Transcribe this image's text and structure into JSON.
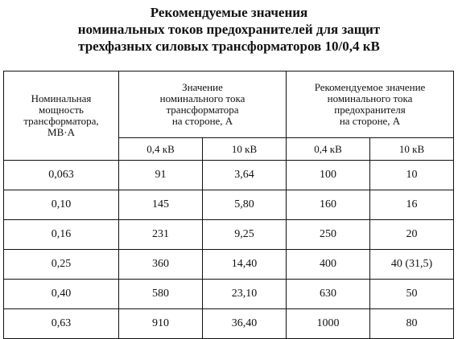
{
  "title": {
    "line1": "Рекомендуемые значения",
    "line2": "номинальных токов предохранителей для защит",
    "line3": "трехфазных силовых трансформаторов 10/0,4 кВ"
  },
  "table": {
    "col_power": [
      "Номинальная",
      "мощность",
      "трансформатора,",
      "МВ·А"
    ],
    "col_transformer_current": [
      "Значение",
      "номинального тока",
      "трансформатора",
      "на стороне, А"
    ],
    "col_fuse_current": [
      "Рекомендуемое значение",
      "номинального тока",
      "предохранителя",
      "на стороне, А"
    ],
    "sub_headers": [
      "0,4 кВ",
      "10 кВ",
      "0,4 кВ",
      "10 кВ"
    ],
    "rows": [
      [
        "0,063",
        "91",
        "3,64",
        "100",
        "10"
      ],
      [
        "0,10",
        "145",
        "5,80",
        "160",
        "16"
      ],
      [
        "0,16",
        "231",
        "9,25",
        "250",
        "20"
      ],
      [
        "0,25",
        "360",
        "14,40",
        "400",
        "40 (31,5)"
      ],
      [
        "0,40",
        "580",
        "23,10",
        "630",
        "50"
      ],
      [
        "0,63",
        "910",
        "36,40",
        "1000",
        "80"
      ]
    ]
  }
}
